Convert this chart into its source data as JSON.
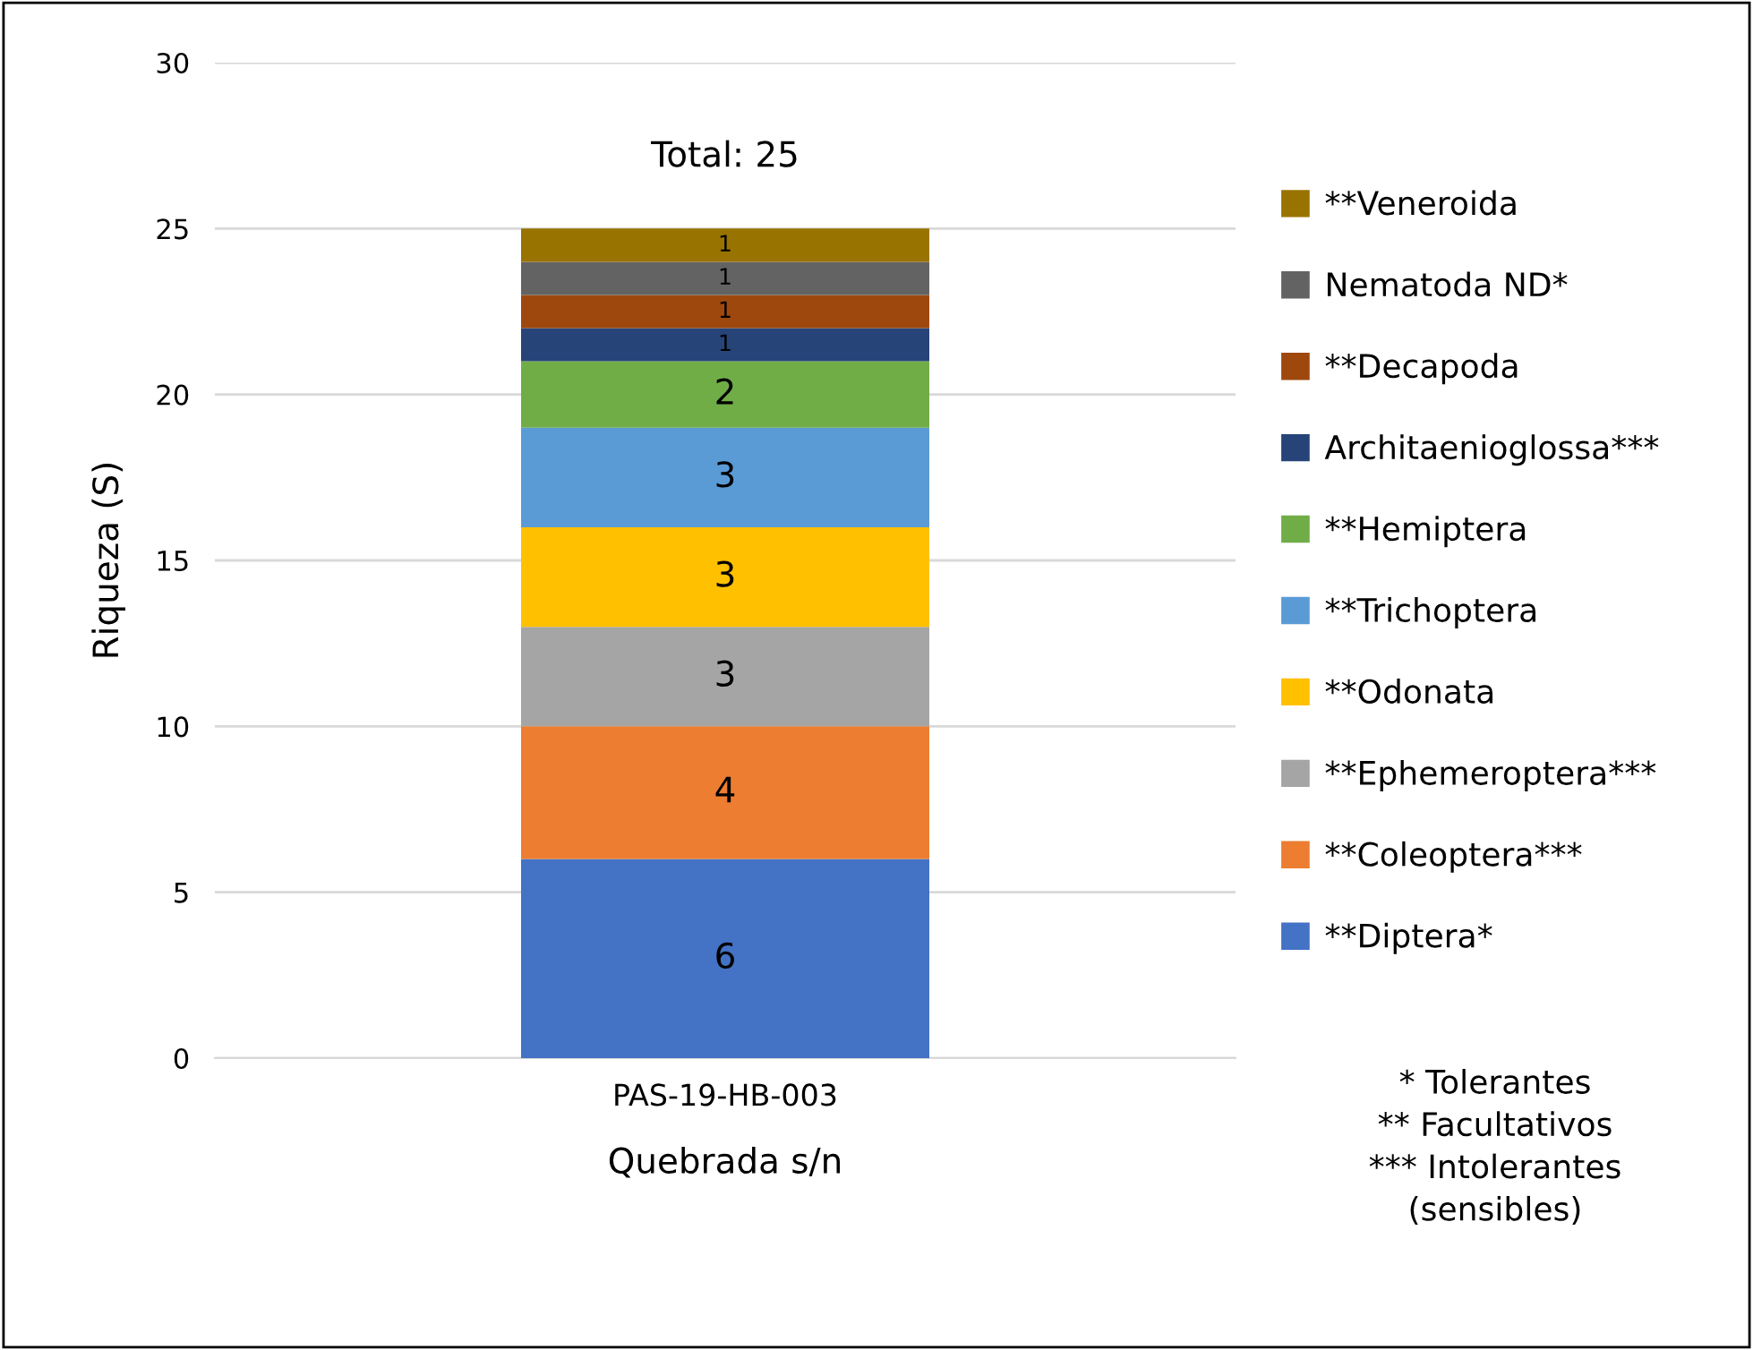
{
  "chart_data": {
    "type": "bar",
    "stacked": true,
    "xlabel": "Quebrada s/n",
    "ylabel": "Riqueza (S)",
    "categories": [
      "PAS-19-HB-003"
    ],
    "series": [
      {
        "name": "**Diptera*",
        "color": "#4472c4",
        "values": [
          6
        ]
      },
      {
        "name": "**Coleoptera***",
        "color": "#ed7d31",
        "values": [
          4
        ]
      },
      {
        "name": "**Ephemeroptera***",
        "color": "#a5a5a5",
        "values": [
          3
        ]
      },
      {
        "name": "**Odonata",
        "color": "#ffc000",
        "values": [
          3
        ]
      },
      {
        "name": "**Trichoptera",
        "color": "#5b9bd5",
        "values": [
          3
        ]
      },
      {
        "name": "**Hemiptera",
        "color": "#70ad47",
        "values": [
          2
        ]
      },
      {
        "name": "Architaenioglossa***",
        "color": "#264478",
        "values": [
          1
        ]
      },
      {
        "name": "**Decapoda",
        "color": "#9e480e",
        "values": [
          1
        ]
      },
      {
        "name": "Nematoda ND*",
        "color": "#636363",
        "values": [
          1
        ]
      },
      {
        "name": "**Veneroida",
        "color": "#997300",
        "values": [
          1
        ]
      }
    ],
    "totals": [
      "Total: 25"
    ],
    "data_labels": true,
    "ylim": [
      0,
      30
    ],
    "yticks": [
      0,
      5,
      10,
      15,
      20,
      25,
      30
    ],
    "grid": "y",
    "legend": "right",
    "annotations": [
      "* Tolerantes\n** Facultativos\n*** Intolerantes\n(sensibles)"
    ]
  }
}
